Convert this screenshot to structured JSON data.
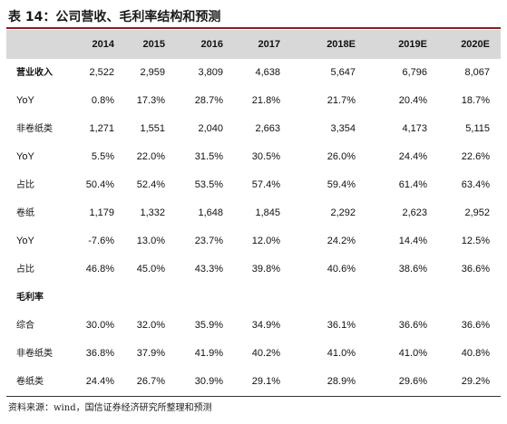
{
  "title": "表 14：公司营收、毛利率结构和预测",
  "columns": [
    "2014",
    "2015",
    "2016",
    "2017",
    "2018E",
    "2019E",
    "2020E"
  ],
  "rows": [
    {
      "label": "营业收入",
      "bold": true,
      "values": [
        "2,522",
        "2,959",
        "3,809",
        "4,638",
        "5,647",
        "6,796",
        "8,067"
      ]
    },
    {
      "label": "YoY",
      "bold": false,
      "values": [
        "0.8%",
        "17.3%",
        "28.7%",
        "21.8%",
        "21.7%",
        "20.4%",
        "18.7%"
      ]
    },
    {
      "label": "非卷纸类",
      "bold": false,
      "values": [
        "1,271",
        "1,551",
        "2,040",
        "2,663",
        "3,354",
        "4,173",
        "5,115"
      ]
    },
    {
      "label": "YoY",
      "bold": false,
      "values": [
        "5.5%",
        "22.0%",
        "31.5%",
        "30.5%",
        "26.0%",
        "24.4%",
        "22.6%"
      ]
    },
    {
      "label": "占比",
      "bold": false,
      "values": [
        "50.4%",
        "52.4%",
        "53.5%",
        "57.4%",
        "59.4%",
        "61.4%",
        "63.4%"
      ]
    },
    {
      "label": "卷纸",
      "bold": false,
      "values": [
        "1,179",
        "1,332",
        "1,648",
        "1,845",
        "2,292",
        "2,623",
        "2,952"
      ]
    },
    {
      "label": "YoY",
      "bold": false,
      "values": [
        "-7.6%",
        "13.0%",
        "23.7%",
        "12.0%",
        "24.2%",
        "14.4%",
        "12.5%"
      ]
    },
    {
      "label": "占比",
      "bold": false,
      "values": [
        "46.8%",
        "45.0%",
        "43.3%",
        "39.8%",
        "40.6%",
        "38.6%",
        "36.6%"
      ]
    },
    {
      "label": "毛利率",
      "bold": true,
      "values": [
        "",
        "",
        "",
        "",
        "",
        "",
        ""
      ]
    },
    {
      "label": "综合",
      "bold": false,
      "values": [
        "30.0%",
        "32.0%",
        "35.9%",
        "34.9%",
        "36.1%",
        "36.6%",
        "36.6%"
      ]
    },
    {
      "label": "非卷纸类",
      "bold": false,
      "values": [
        "36.8%",
        "37.9%",
        "41.9%",
        "40.2%",
        "41.0%",
        "41.0%",
        "40.8%"
      ]
    },
    {
      "label": "卷纸类",
      "bold": false,
      "values": [
        "24.4%",
        "26.7%",
        "30.9%",
        "29.1%",
        "28.9%",
        "29.6%",
        "29.2%"
      ]
    }
  ],
  "source": "资料来源：wind，国信证券经济研究所整理和预测",
  "colors": {
    "title_rule": "#8c1c24",
    "header_band": "#d8d8d8"
  }
}
